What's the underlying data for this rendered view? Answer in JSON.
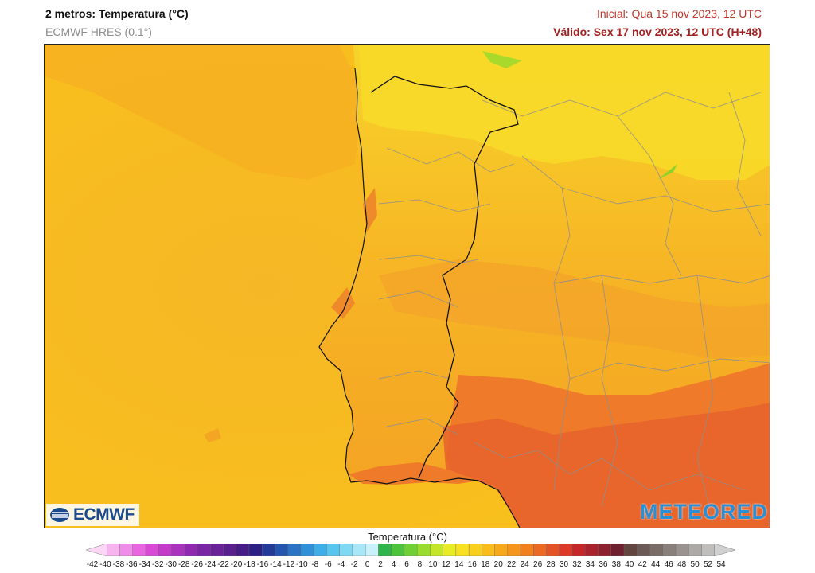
{
  "header": {
    "title": "2 metros: Temperatura (°C)",
    "model": "ECMWF HRES (0.1°)",
    "initial": "Inicial: Qua 15 nov 2023, 12 UTC",
    "valid": "Válido: Sex 17 nov 2023, 12 UTC (H+48)"
  },
  "logos": {
    "left": "ECMWF",
    "right": "METEORED"
  },
  "colors": {
    "ocean": "#f9c21c",
    "land": "#f7ad1f",
    "land_light": "#f7d928",
    "warm": "#f08526",
    "hot": "#e45b2a",
    "border": "#111111",
    "admin": "#8f8f8f"
  },
  "legend": {
    "title": "Temperatura (°C)",
    "ticks": [
      "-42",
      "-40",
      "-38",
      "-36",
      "-34",
      "-32",
      "-30",
      "-28",
      "-26",
      "-24",
      "-22",
      "-20",
      "-18",
      "-16",
      "-14",
      "-12",
      "-10",
      "-8",
      "-6",
      "-4",
      "-2",
      "0",
      "2",
      "4",
      "6",
      "8",
      "10",
      "12",
      "14",
      "16",
      "18",
      "20",
      "22",
      "24",
      "26",
      "28",
      "30",
      "32",
      "34",
      "36",
      "38",
      "40",
      "42",
      "44",
      "46",
      "48",
      "50",
      "52",
      "54"
    ],
    "colors": [
      "#fcd7f5",
      "#f7b4ee",
      "#ef8ee8",
      "#e866e0",
      "#d84ad6",
      "#c33bc8",
      "#a933bd",
      "#8f2ab0",
      "#7a25a3",
      "#6a2298",
      "#5a208d",
      "#471d86",
      "#2c2083",
      "#233b96",
      "#2556ad",
      "#2a72c3",
      "#3190d8",
      "#3daee6",
      "#57c6ee",
      "#7fd9f3",
      "#a8e7f7",
      "#c9f1fb",
      "#2fb54a",
      "#4cc33b",
      "#70d033",
      "#98dc2d",
      "#c4e629",
      "#e8ec25",
      "#f7e122",
      "#f9cf1f",
      "#f8bd1d",
      "#f7a91c",
      "#f6951d",
      "#f1801f",
      "#eb6a23",
      "#e45325",
      "#dc3a27",
      "#c4262a",
      "#a8232d",
      "#8b2230",
      "#6f2030",
      "#62453e",
      "#6b5a55",
      "#7a6d68",
      "#8a807b",
      "#9a928f",
      "#acaaa6",
      "#bfbebd",
      "#d0d0d0"
    ]
  }
}
